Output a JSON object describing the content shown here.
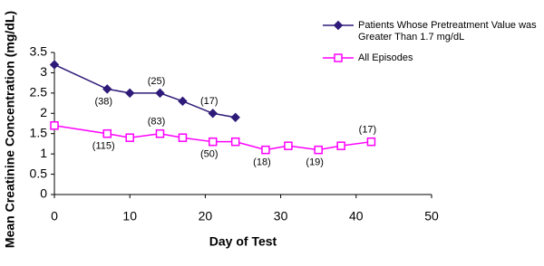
{
  "chart_data": {
    "type": "line",
    "x_label": "Day of Test",
    "y_label": "Mean Creatinine Concentration (mg/dL)",
    "xlim": [
      0,
      50
    ],
    "xticks": [
      0,
      10,
      20,
      30,
      40,
      50
    ],
    "ylim": [
      0,
      3.5
    ],
    "yticks": [
      0,
      0.5,
      1,
      1.5,
      2,
      2.5,
      3,
      3.5
    ],
    "legend": "upper right",
    "series": [
      {
        "name": "Patients Whose Pretreatment Value was Greater Than 1.7 mg/dL",
        "color": "#2e1a78",
        "marker": "diamond",
        "x": [
          0,
          7,
          10,
          14,
          17,
          21,
          24
        ],
        "values": [
          3.2,
          2.6,
          2.5,
          2.5,
          2.3,
          2.0,
          1.9
        ],
        "point_labels": [
          null,
          "(38)",
          null,
          "(25)",
          null,
          "(17)",
          null
        ]
      },
      {
        "name": "All Episodes",
        "color": "#ff00ff",
        "marker": "square",
        "x": [
          0,
          7,
          10,
          14,
          17,
          21,
          24,
          28,
          31,
          35,
          38,
          42
        ],
        "values": [
          1.7,
          1.5,
          1.4,
          1.5,
          1.4,
          1.3,
          1.3,
          1.1,
          1.2,
          1.1,
          1.2,
          1.3
        ],
        "point_labels": [
          null,
          "(115)",
          null,
          "(83)",
          null,
          "(50)",
          null,
          "(18)",
          null,
          "(19)",
          null,
          "(17)"
        ]
      }
    ]
  }
}
